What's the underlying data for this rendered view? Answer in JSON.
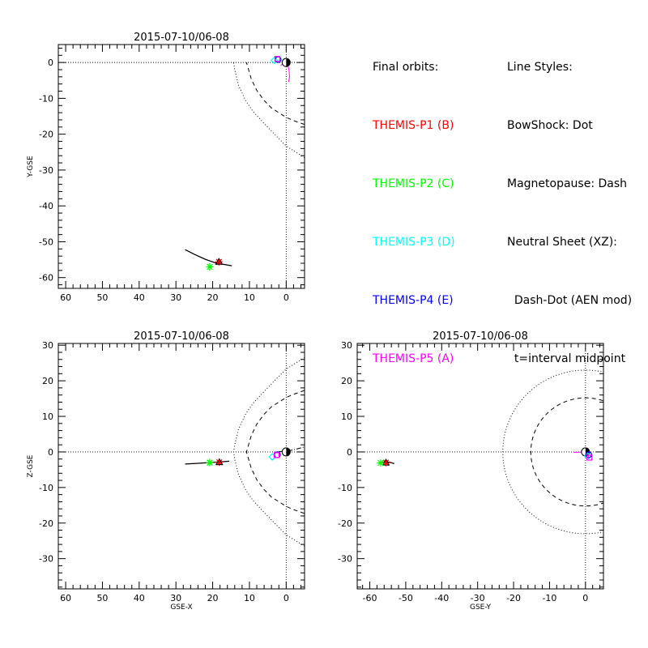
{
  "legend": {
    "final_orbits_title": "Final orbits:",
    "probes": [
      {
        "label": "THEMIS-P1 (B)",
        "color": "#ff0000"
      },
      {
        "label": "THEMIS-P2 (C)",
        "color": "#00ff00"
      },
      {
        "label": "THEMIS-P3 (D)",
        "color": "#00ffff"
      },
      {
        "label": "THEMIS-P4 (E)",
        "color": "#0000ff"
      },
      {
        "label": "THEMIS-P5 (A)",
        "color": "#ff00ff"
      }
    ],
    "line_styles_title": "Line Styles:",
    "line_styles": [
      "BowShock: Dot",
      "Magnetopause: Dash",
      "Neutral Sheet (XZ):",
      "  Dash-Dot (AEN mod)",
      "  t=interval midpoint"
    ]
  },
  "chart_data": [
    {
      "type": "line",
      "id": "xy",
      "title": "2015-07-10/06-08",
      "xlabel": "",
      "ylabel": "Y-GSE",
      "xlim": [
        62,
        -5
      ],
      "ylim": [
        5,
        -63
      ],
      "xticks": [
        60,
        50,
        40,
        30,
        20,
        10,
        0
      ],
      "yticks": [
        -60,
        -50,
        -40,
        -30,
        -20,
        -10,
        0
      ],
      "reference_lines": {
        "x": 0,
        "y": 0
      },
      "boundaries": [
        {
          "name": "BowShock",
          "style": "dot",
          "x": [
            -5,
            0,
            3,
            6,
            9,
            11,
            13,
            14,
            14.3
          ],
          "y": [
            -26.5,
            -23.3,
            -20.2,
            -17,
            -13.7,
            -10.7,
            -6.3,
            -2,
            0
          ]
        },
        {
          "name": "Magnetopause",
          "style": "dash",
          "x": [
            -5,
            -2,
            0,
            2,
            4,
            6,
            8,
            9.5,
            10.8
          ],
          "y": [
            -17.3,
            -16.2,
            -15.3,
            -14,
            -12.7,
            -10.6,
            -7.8,
            -4.6,
            0
          ]
        }
      ],
      "orbit_track": {
        "x": [
          27.5,
          25,
          22,
          19.5,
          17,
          14.8
        ],
        "y": [
          -52.2,
          -53.5,
          -54.9,
          -55.8,
          -56.3,
          -56.7
        ]
      },
      "probes": [
        {
          "name": "THEMIS-P1 (B)",
          "x": 18.3,
          "y": -55.6
        },
        {
          "name": "THEMIS-P2 (C)",
          "x": 20.8,
          "y": -57
        },
        {
          "name": "THEMIS-P3 (D)",
          "x": 3.2,
          "y": 0.6
        },
        {
          "name": "THEMIS-P4 (E)",
          "x": 2.2,
          "y": 0.8
        },
        {
          "name": "THEMIS-P5 (A)",
          "x": 2.4,
          "y": 1
        }
      ],
      "p5_arc": {
        "x": [
          1.5,
          1,
          0.5,
          0,
          -0.5,
          -0.8,
          -0.9,
          -0.7
        ],
        "y": [
          -0.8,
          -0.5,
          -0.3,
          -0.1,
          -1,
          -2.2,
          -4,
          -5.4
        ]
      }
    },
    {
      "type": "line",
      "id": "xz",
      "title": "2015-07-10/06-08",
      "xlabel": "GSE-X",
      "ylabel": "Z-GSE",
      "xlim": [
        62,
        -5
      ],
      "ylim": [
        30.5,
        -38.5
      ],
      "xticks": [
        60,
        50,
        40,
        30,
        20,
        10,
        0
      ],
      "yticks": [
        30,
        20,
        10,
        0,
        -10,
        -20,
        -30
      ],
      "reference_lines": {
        "x": 0,
        "y": 0
      },
      "boundaries": [
        {
          "name": "BowShock",
          "style": "dot",
          "x": [
            -5,
            0,
            3,
            6,
            9,
            11,
            13,
            14,
            14.3,
            14,
            13,
            11,
            9,
            6,
            3,
            0,
            -5
          ],
          "y": [
            26.5,
            23.3,
            20.2,
            17,
            13.7,
            10.7,
            6.3,
            2,
            0,
            -2,
            -6.3,
            -10.7,
            -13.7,
            -17,
            -20.2,
            -23.3,
            -26.5
          ]
        },
        {
          "name": "Magnetopause",
          "style": "dash",
          "x": [
            -5,
            -2,
            0,
            2,
            4,
            6,
            8,
            9.5,
            10.8,
            9.5,
            8,
            6,
            4,
            2,
            0,
            -2,
            -5
          ],
          "y": [
            17.3,
            16.2,
            15.3,
            14,
            12.7,
            10.6,
            7.8,
            4.6,
            0,
            -4.6,
            -7.8,
            -10.6,
            -12.7,
            -14,
            -15.3,
            -16.2,
            -17.3
          ]
        }
      ],
      "neutral_sheet": {
        "x": [
          2,
          0,
          -2,
          -5
        ],
        "y": [
          0.1,
          0.2,
          0.6,
          1.4
        ]
      },
      "orbit_track": {
        "x": [
          27.5,
          24,
          21,
          18,
          15.5
        ],
        "y": [
          -3.4,
          -3.2,
          -3,
          -2.8,
          -2.6
        ]
      },
      "probes": [
        {
          "name": "THEMIS-P1 (B)",
          "x": 18.2,
          "y": -2.9
        },
        {
          "name": "THEMIS-P2 (C)",
          "x": 20.8,
          "y": -3
        },
        {
          "name": "THEMIS-P3 (D)",
          "x": 3.8,
          "y": -1.4
        },
        {
          "name": "THEMIS-P4 (E)",
          "x": 2.4,
          "y": -0.8
        },
        {
          "name": "THEMIS-P5 (A)",
          "x": 2.6,
          "y": -0.9
        }
      ]
    },
    {
      "type": "line",
      "id": "yz",
      "title": "2015-07-10/06-08",
      "xlabel": "GSE-Y",
      "ylabel": "",
      "xlim": [
        -63.5,
        5
      ],
      "ylim": [
        30.5,
        -38.5
      ],
      "xticks": [
        -60,
        -50,
        -40,
        -30,
        -20,
        -10,
        0
      ],
      "yticks": [
        30,
        20,
        10,
        0,
        -10,
        -20,
        -30
      ],
      "reference_lines": {
        "x": 0,
        "y": 0
      },
      "boundaries": [
        {
          "name": "BowShock",
          "style": "dot",
          "radius": 23
        },
        {
          "name": "Magnetopause",
          "style": "dash",
          "radius": 15.2
        }
      ],
      "orbit_track": {
        "x": [
          -57.5,
          -56,
          -54.5,
          -53.2
        ],
        "y": [
          -3.1,
          -2.9,
          -2.9,
          -3.3
        ]
      },
      "probes": [
        {
          "name": "THEMIS-P1 (B)",
          "x": -55.5,
          "y": -3
        },
        {
          "name": "THEMIS-P2 (C)",
          "x": -57,
          "y": -3.1
        },
        {
          "name": "THEMIS-P3 (D)",
          "x": 0.6,
          "y": -1.2
        },
        {
          "name": "THEMIS-P4 (E)",
          "x": 0.9,
          "y": -0.8
        },
        {
          "name": "THEMIS-P5 (A)",
          "x": 1.1,
          "y": -1.6
        }
      ],
      "p5_arc": {
        "x": [
          -3.3,
          -2,
          -0.5,
          0.5,
          0.9
        ],
        "y": [
          -0.1,
          -0.1,
          0,
          -0.6,
          -1.4
        ]
      }
    }
  ]
}
